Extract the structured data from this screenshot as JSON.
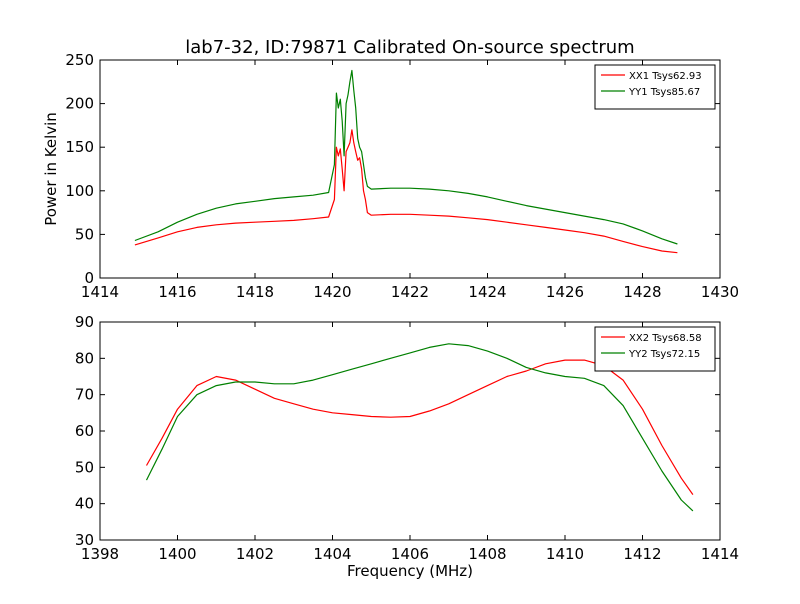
{
  "page": {
    "title": "lab7-32, ID:79871 Calibrated On-source spectrum"
  },
  "chart_data": [
    {
      "type": "line",
      "title": "lab7-32, ID:79871 Calibrated On-source spectrum",
      "xlabel": "",
      "ylabel": "Power in Kelvin",
      "xlim": [
        1414,
        1430
      ],
      "ylim": [
        0,
        250
      ],
      "xticks": [
        1414,
        1416,
        1418,
        1420,
        1422,
        1424,
        1426,
        1428,
        1430
      ],
      "yticks": [
        0,
        50,
        100,
        150,
        200,
        250
      ],
      "grid": false,
      "legend_position": "top-right",
      "series": [
        {
          "name": "XX1 Tsys62.93",
          "color": "#ff0000",
          "x": [
            1414.9,
            1415.5,
            1416.0,
            1416.5,
            1417.0,
            1417.5,
            1418.0,
            1418.5,
            1419.0,
            1419.5,
            1419.9,
            1420.05,
            1420.1,
            1420.15,
            1420.2,
            1420.25,
            1420.3,
            1420.35,
            1420.4,
            1420.45,
            1420.5,
            1420.55,
            1420.6,
            1420.65,
            1420.7,
            1420.75,
            1420.8,
            1420.85,
            1420.9,
            1421.0,
            1421.5,
            1422.0,
            1422.5,
            1423.0,
            1423.5,
            1424.0,
            1424.5,
            1425.0,
            1425.5,
            1426.0,
            1426.5,
            1427.0,
            1427.5,
            1428.0,
            1428.5,
            1428.9
          ],
          "y": [
            38,
            46,
            53,
            58,
            61,
            63,
            64,
            65,
            66,
            68,
            70,
            90,
            150,
            140,
            148,
            125,
            100,
            145,
            150,
            155,
            170,
            155,
            145,
            135,
            138,
            125,
            100,
            90,
            75,
            72,
            73,
            73,
            72,
            71,
            69,
            67,
            64,
            61,
            58,
            55,
            52,
            48,
            42,
            36,
            31,
            29
          ]
        },
        {
          "name": "YY1 Tsys85.67",
          "color": "#008000",
          "x": [
            1414.9,
            1415.5,
            1416.0,
            1416.5,
            1417.0,
            1417.5,
            1418.0,
            1418.5,
            1419.0,
            1419.5,
            1419.9,
            1420.05,
            1420.1,
            1420.15,
            1420.2,
            1420.25,
            1420.3,
            1420.35,
            1420.4,
            1420.45,
            1420.5,
            1420.55,
            1420.6,
            1420.65,
            1420.7,
            1420.75,
            1420.8,
            1420.85,
            1420.9,
            1421.0,
            1421.5,
            1422.0,
            1422.5,
            1423.0,
            1423.5,
            1424.0,
            1424.5,
            1425.0,
            1425.5,
            1426.0,
            1426.5,
            1427.0,
            1427.5,
            1428.0,
            1428.5,
            1428.9
          ],
          "y": [
            43,
            53,
            64,
            73,
            80,
            85,
            88,
            91,
            93,
            95,
            98,
            130,
            212,
            195,
            205,
            180,
            140,
            200,
            210,
            225,
            238,
            215,
            195,
            160,
            150,
            145,
            130,
            115,
            105,
            102,
            103,
            103,
            102,
            100,
            97,
            93,
            88,
            83,
            79,
            75,
            71,
            67,
            62,
            54,
            45,
            39
          ]
        }
      ]
    },
    {
      "type": "line",
      "title": "",
      "xlabel": "Frequency (MHz)",
      "ylabel": "",
      "xlim": [
        1398,
        1414
      ],
      "ylim": [
        30,
        90
      ],
      "xticks": [
        1398,
        1400,
        1402,
        1404,
        1406,
        1408,
        1410,
        1412,
        1414
      ],
      "yticks": [
        30,
        40,
        50,
        60,
        70,
        80,
        90
      ],
      "grid": false,
      "legend_position": "top-right",
      "series": [
        {
          "name": "XX2 Tsys68.58",
          "color": "#ff0000",
          "x": [
            1399.2,
            1399.6,
            1400.0,
            1400.5,
            1401.0,
            1401.5,
            1402.0,
            1402.5,
            1403.0,
            1403.5,
            1404.0,
            1404.5,
            1405.0,
            1405.5,
            1406.0,
            1406.5,
            1407.0,
            1407.5,
            1408.0,
            1408.5,
            1409.0,
            1409.5,
            1410.0,
            1410.5,
            1411.0,
            1411.5,
            1412.0,
            1412.5,
            1413.0,
            1413.3
          ],
          "y": [
            50.5,
            58,
            66,
            72.5,
            75,
            74,
            71.5,
            69,
            67.5,
            66,
            65,
            64.5,
            64,
            63.8,
            64,
            65.5,
            67.5,
            70,
            72.5,
            75,
            76.5,
            78.5,
            79.5,
            79.5,
            78,
            74,
            66,
            56,
            47,
            42.5
          ]
        },
        {
          "name": "YY2 Tsys72.15",
          "color": "#008000",
          "x": [
            1399.2,
            1399.6,
            1400.0,
            1400.5,
            1401.0,
            1401.5,
            1402.0,
            1402.5,
            1403.0,
            1403.5,
            1404.0,
            1404.5,
            1405.0,
            1405.5,
            1406.0,
            1406.5,
            1407.0,
            1407.5,
            1408.0,
            1408.5,
            1409.0,
            1409.5,
            1410.0,
            1410.5,
            1411.0,
            1411.5,
            1412.0,
            1412.5,
            1413.0,
            1413.3
          ],
          "y": [
            46.5,
            55,
            64,
            70,
            72.5,
            73.5,
            73.5,
            73,
            73,
            74,
            75.5,
            77,
            78.5,
            80,
            81.5,
            83,
            84,
            83.5,
            82,
            80,
            77.5,
            76,
            75,
            74.5,
            72.5,
            67,
            58,
            49,
            41,
            38
          ]
        }
      ]
    }
  ]
}
